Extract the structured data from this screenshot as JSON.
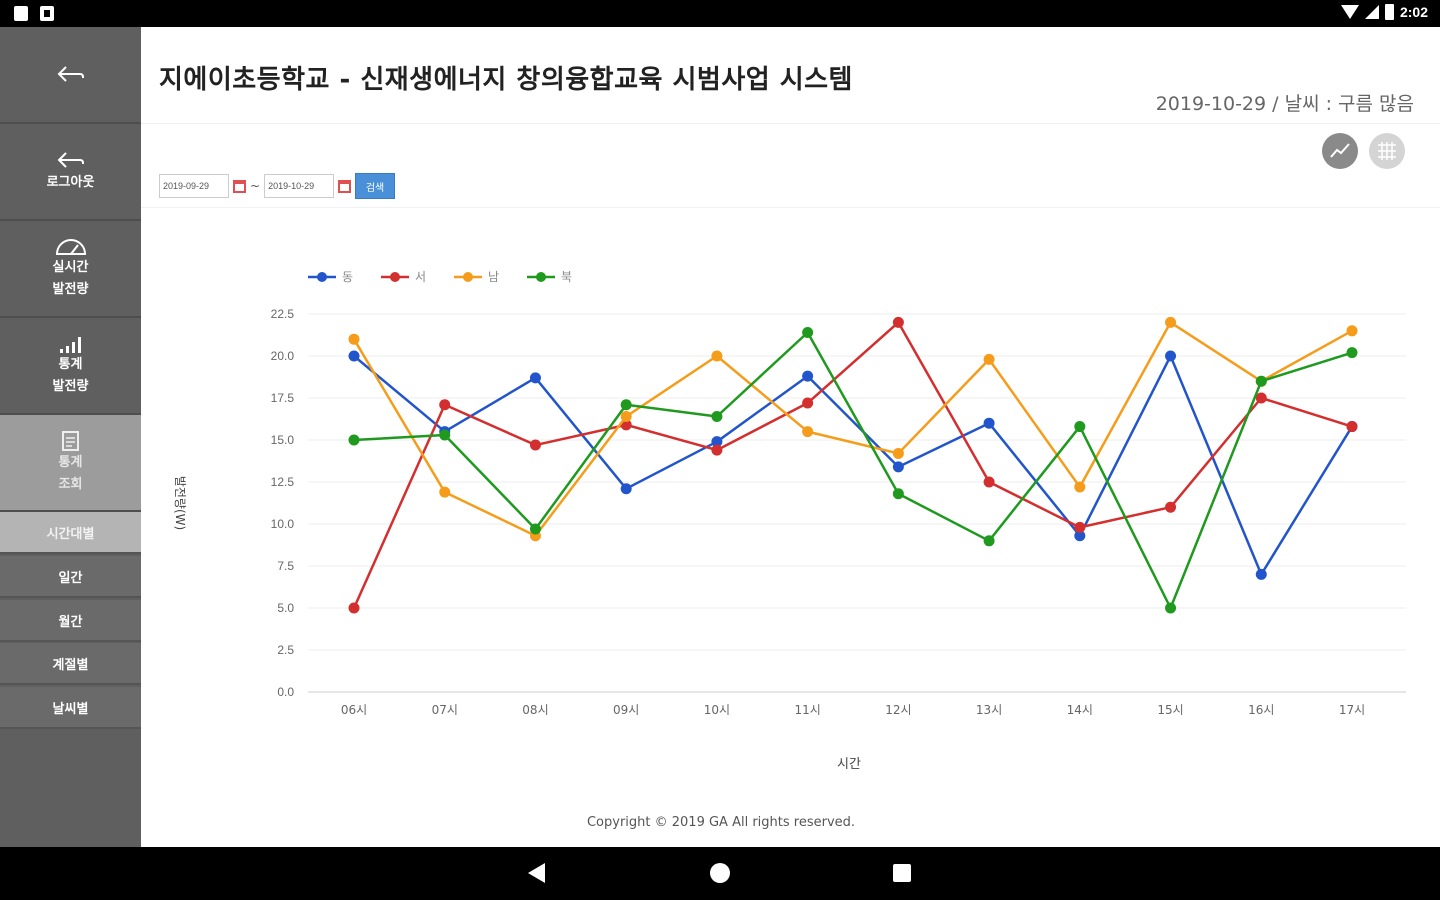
{
  "status_bar": {
    "time": "2:02"
  },
  "sidebar": {
    "back_icon": "back-arrow-icon",
    "items": [
      {
        "icon": "logout-icon",
        "label_lines": [
          "로그아웃"
        ]
      },
      {
        "icon": "gauge-icon",
        "label_lines": [
          "실시간",
          "발전량"
        ]
      },
      {
        "icon": "bar-chart-icon",
        "label_lines": [
          "통계",
          "발전량"
        ]
      },
      {
        "icon": "report-icon",
        "label_lines": [
          "통계",
          "조회"
        ]
      }
    ],
    "sub_items": [
      "시간대별",
      "일간",
      "월간",
      "계절별",
      "날씨별"
    ]
  },
  "header": {
    "title": "지에이초등학교 - 신재생에너지 창의융합교육 시범사업 시스템",
    "date_weather": "2019-10-29 / 날씨 : 구름 많음"
  },
  "filter": {
    "start_date": "2019-09-29",
    "separator": "~",
    "end_date": "2019-10-29",
    "search_label": "검색"
  },
  "footer": {
    "copyright": "Copyright © 2019 GA All rights reserved."
  },
  "colors": {
    "east": "#2255cc",
    "west": "#d32f2f",
    "south": "#f59d1b",
    "north": "#1f9a1f"
  },
  "chart_data": {
    "type": "line",
    "xlabel": "시간",
    "ylabel": "발전량(W)",
    "categories": [
      "06시",
      "07시",
      "08시",
      "09시",
      "10시",
      "11시",
      "12시",
      "13시",
      "14시",
      "15시",
      "16시",
      "17시"
    ],
    "ylim": [
      0,
      22.5
    ],
    "yticks": [
      "0.0",
      "2.5",
      "5.0",
      "7.5",
      "10.0",
      "12.5",
      "15.0",
      "17.5",
      "20.0",
      "22.5"
    ],
    "legend": "top-left",
    "series": [
      {
        "name": "동",
        "color": "#2255cc",
        "values": [
          20.0,
          15.5,
          18.7,
          12.1,
          14.9,
          18.8,
          13.4,
          16.0,
          9.3,
          20.0,
          7.0,
          15.8
        ]
      },
      {
        "name": "서",
        "color": "#d32f2f",
        "values": [
          5.0,
          17.1,
          14.7,
          15.9,
          14.4,
          17.2,
          22.0,
          12.5,
          9.8,
          11.0,
          17.5,
          15.8
        ]
      },
      {
        "name": "남",
        "color": "#f59d1b",
        "values": [
          21.0,
          11.9,
          9.3,
          16.4,
          20.0,
          15.5,
          14.2,
          19.8,
          12.2,
          22.0,
          18.5,
          21.5
        ]
      },
      {
        "name": "북",
        "color": "#1f9a1f",
        "values": [
          15.0,
          15.3,
          9.7,
          17.1,
          16.4,
          21.4,
          11.8,
          9.0,
          15.8,
          5.0,
          18.5,
          20.2
        ]
      }
    ]
  }
}
